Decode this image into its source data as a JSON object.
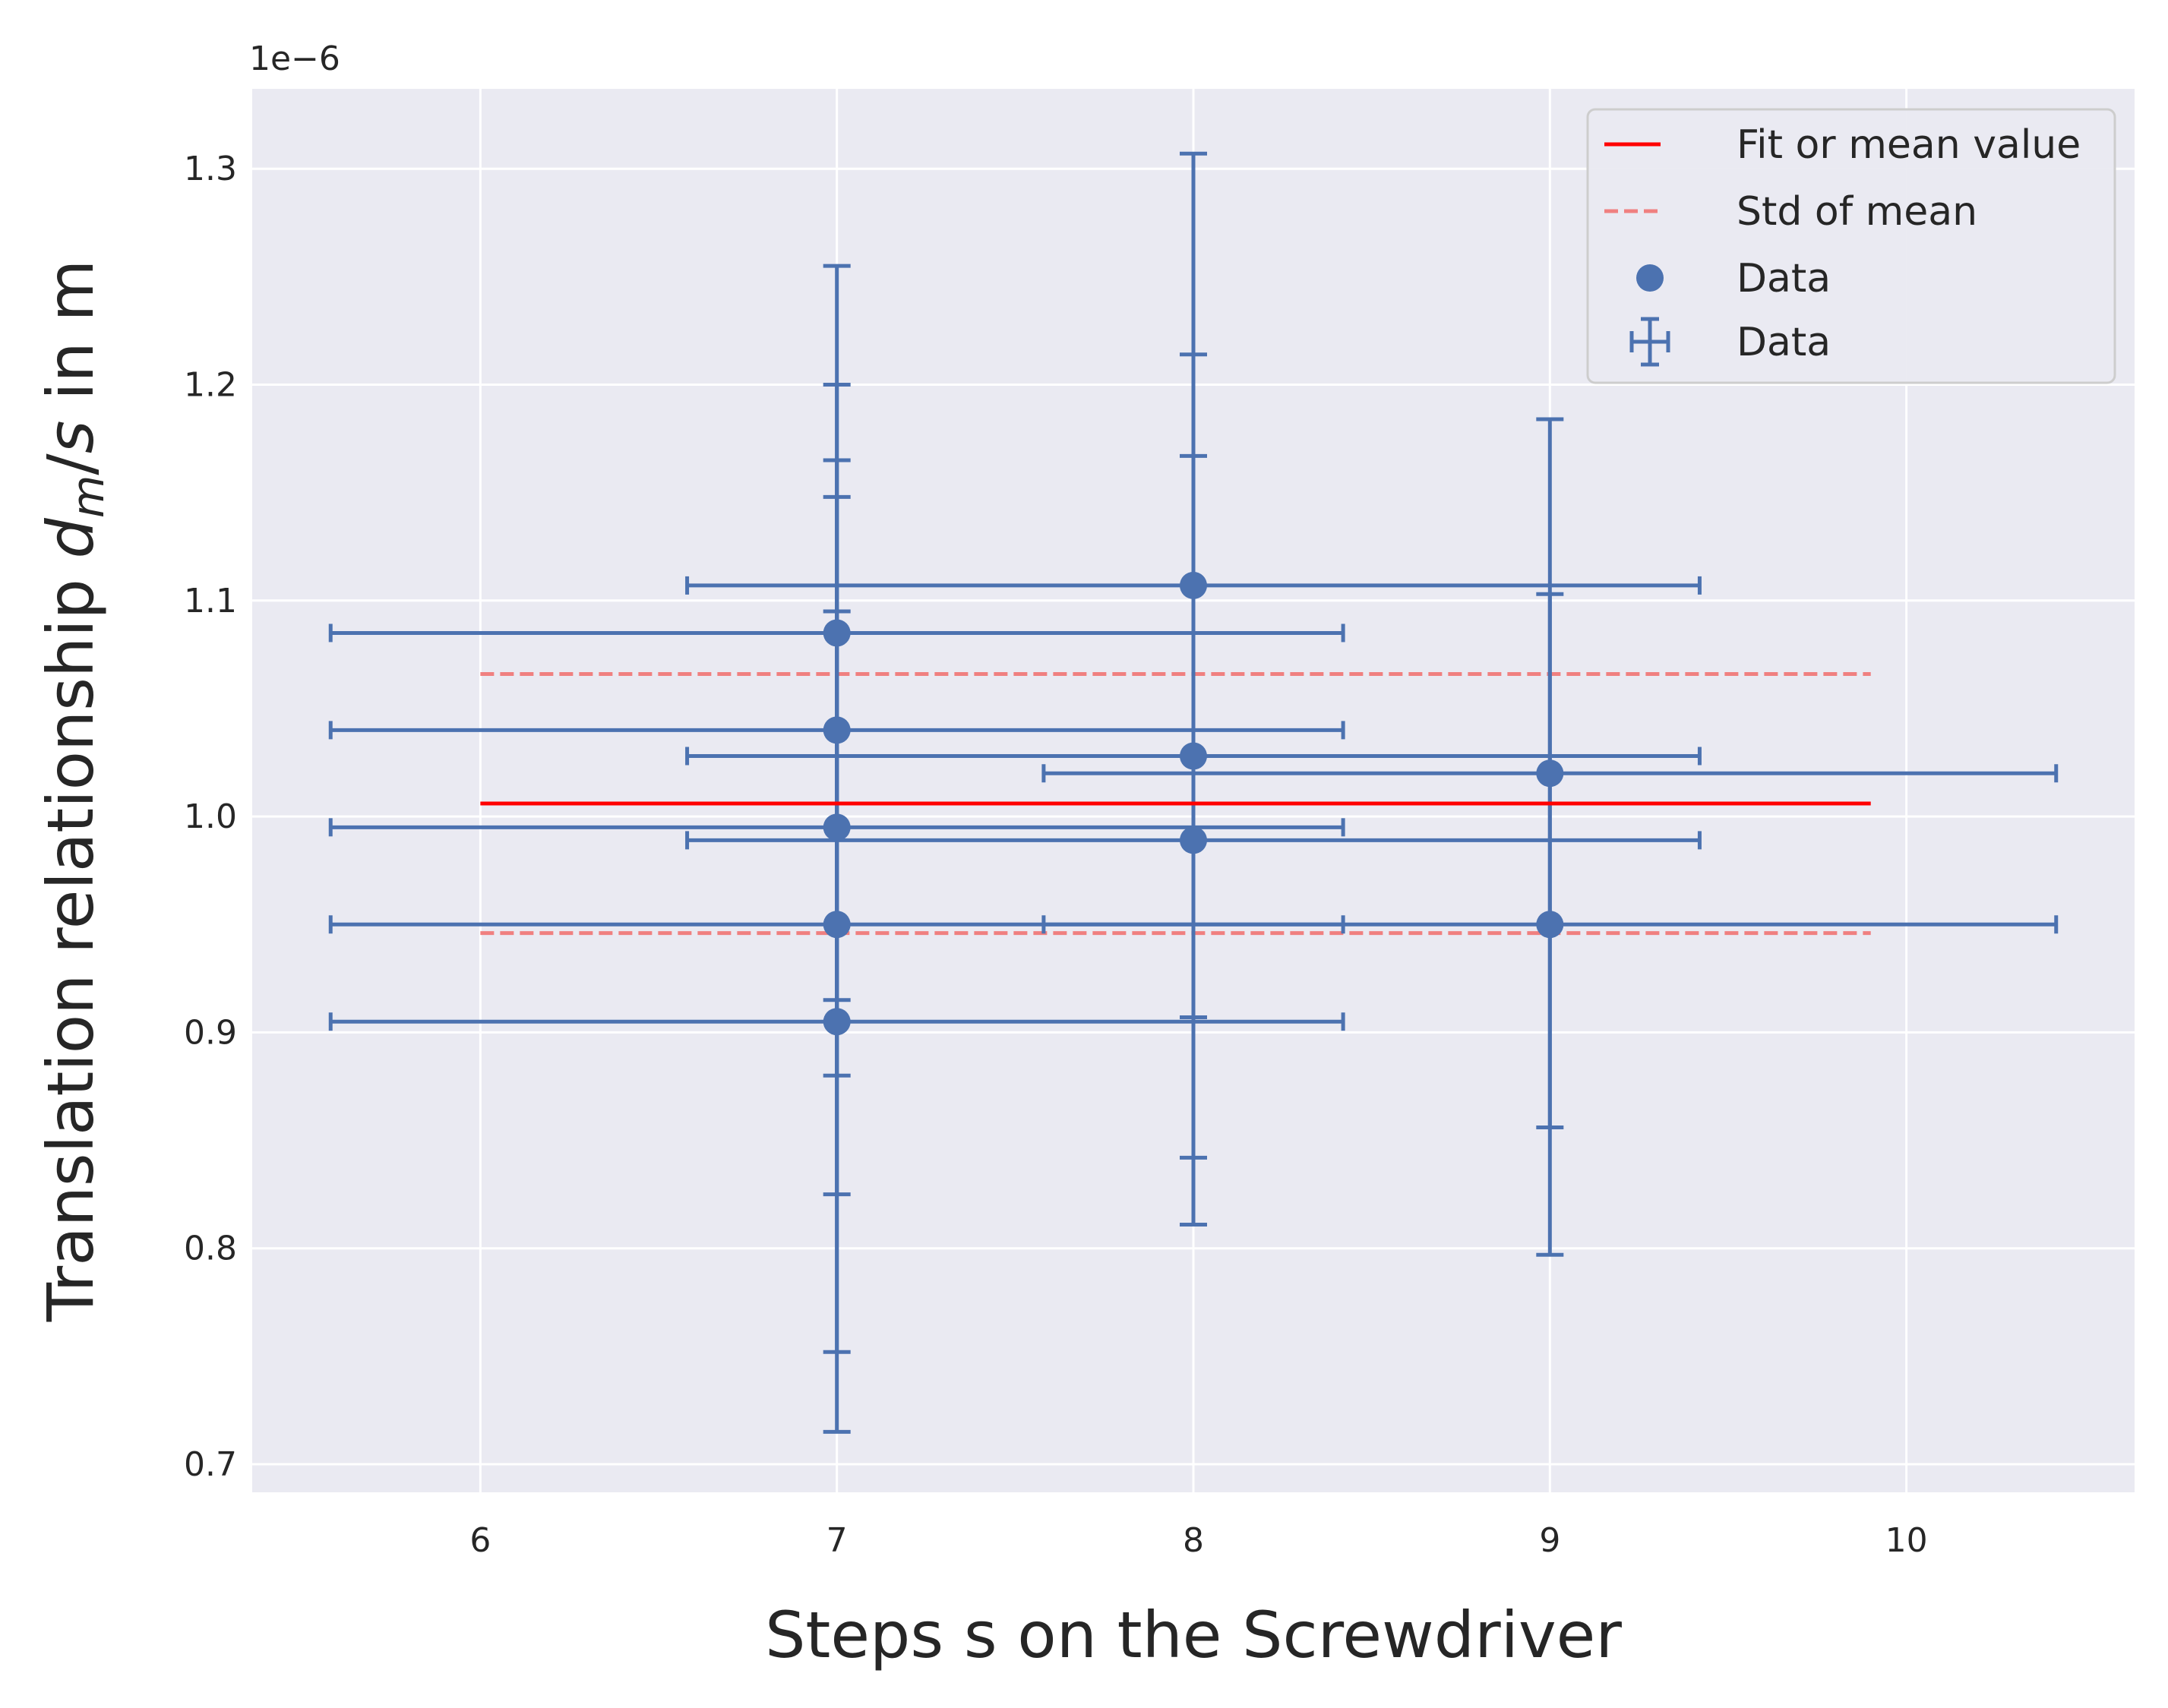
{
  "chart_data": {
    "type": "scatter",
    "title": "",
    "xlabel": "Steps s on the Screwdriver",
    "ylabel": {
      "prefix": "Translation relationship ",
      "var": "d",
      "sub": "m",
      "slash": "/",
      "var2": "s",
      "suffix": " in m"
    },
    "y_offset_text": "1e−6",
    "xlim": [
      5.36,
      10.64
    ],
    "ylim": [
      0.687,
      1.337
    ],
    "x_ticks": [
      6,
      7,
      8,
      9,
      10
    ],
    "x_tick_labels": [
      "6",
      "7",
      "8",
      "9",
      "10"
    ],
    "y_ticks": [
      0.7,
      0.8,
      0.9,
      1.0,
      1.1,
      1.2,
      1.3
    ],
    "y_tick_labels": [
      "0.7",
      "0.8",
      "0.9",
      "1.0",
      "1.1",
      "1.2",
      "1.3"
    ],
    "grid": true,
    "legend_position": "top-right",
    "colors": {
      "data": "#4c72b0",
      "fit": "#ff0000",
      "std": "#f08080",
      "background": "#eaeaf2",
      "grid": "#ffffff"
    },
    "fit": {
      "name": "Fit or mean value",
      "x": [
        6,
        9.9
      ],
      "y": 1.006
    },
    "std_of_mean": {
      "name": "Std of mean",
      "x": [
        6,
        9.9
      ],
      "upper": 1.066,
      "lower": 0.946
    },
    "points": [
      {
        "x": 7,
        "y": 1.085,
        "xerr": 1.42,
        "yerr": 0.17
      },
      {
        "x": 7,
        "y": 1.04,
        "xerr": 1.42,
        "yerr": 0.16
      },
      {
        "x": 7,
        "y": 0.995,
        "xerr": 1.42,
        "yerr": 0.17
      },
      {
        "x": 7,
        "y": 0.95,
        "xerr": 1.42,
        "yerr": 0.198
      },
      {
        "x": 7,
        "y": 0.905,
        "xerr": 1.42,
        "yerr": 0.19
      },
      {
        "x": 8,
        "y": 1.107,
        "xerr": 1.42,
        "yerr": 0.2
      },
      {
        "x": 8,
        "y": 1.028,
        "xerr": 1.42,
        "yerr": 0.186
      },
      {
        "x": 8,
        "y": 0.989,
        "xerr": 1.42,
        "yerr": 0.178
      },
      {
        "x": 9,
        "y": 1.02,
        "xerr": 1.42,
        "yerr": 0.164
      },
      {
        "x": 9,
        "y": 0.95,
        "xerr": 1.42,
        "yerr": 0.153
      }
    ],
    "legend": [
      {
        "label": "Fit or mean value",
        "kind": "line"
      },
      {
        "label": "Std of mean",
        "kind": "dashed"
      },
      {
        "label": "Data",
        "kind": "marker"
      },
      {
        "label": "Data",
        "kind": "errorbar"
      }
    ]
  }
}
